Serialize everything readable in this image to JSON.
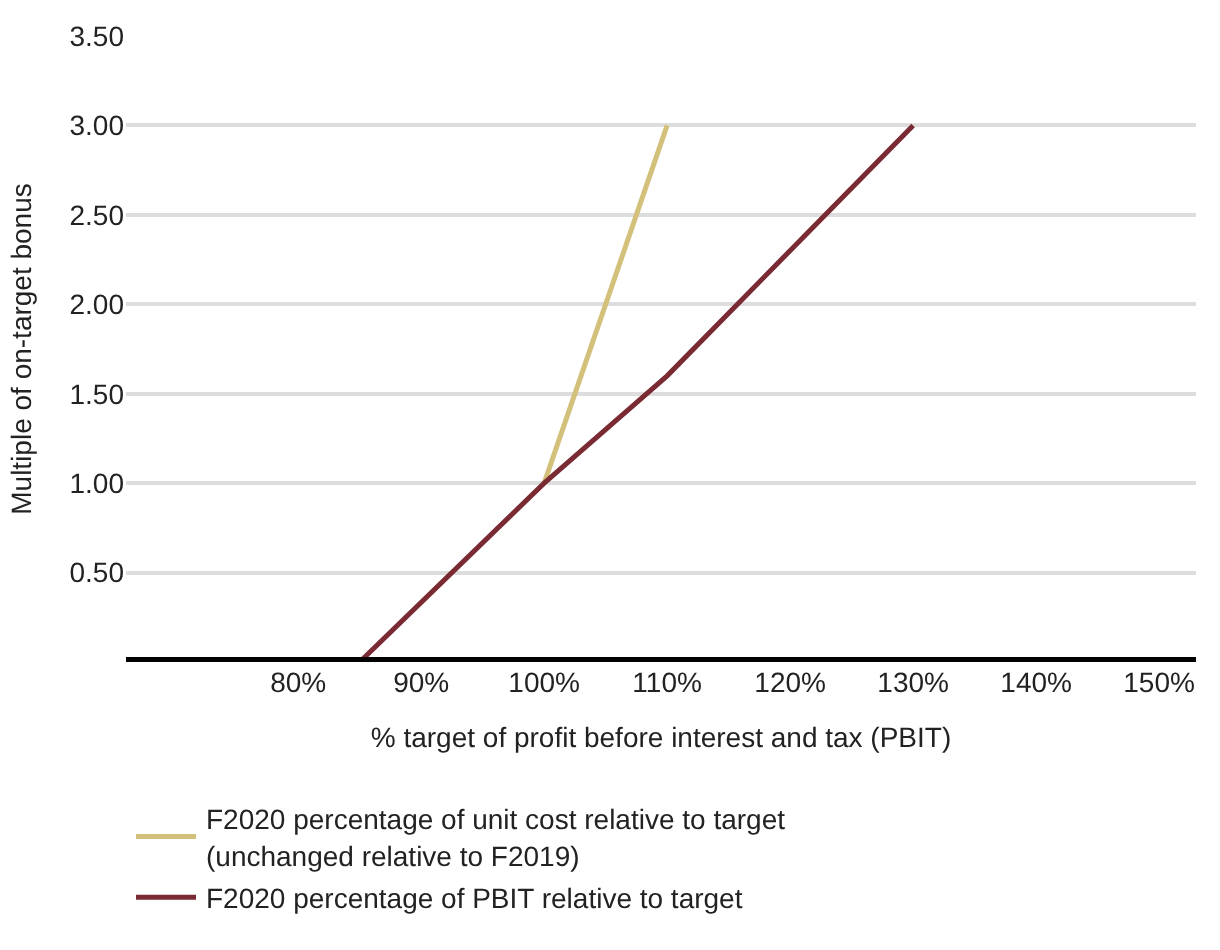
{
  "chart_data": {
    "type": "line",
    "xlabel": "% target of profit before interest and tax (PBIT)",
    "ylabel": "Multiple of on-target bonus",
    "series": [
      {
        "name": "F2020 percentage of unit cost relative to target\n(unchanged relative to F2019)",
        "color": "#d3c07a",
        "x": [
          100,
          110
        ],
        "values": [
          1.0,
          3.0
        ]
      },
      {
        "name": "F2020 percentage of PBIT relative to target",
        "color": "#7a2a33",
        "x": [
          85,
          100,
          110,
          130
        ],
        "values": [
          0,
          1.0,
          1.6,
          3.0
        ]
      }
    ],
    "xlim": [
      66,
      153
    ],
    "ylim": [
      0,
      3.5
    ],
    "xticks": [
      {
        "value": 80,
        "label": "80%"
      },
      {
        "value": 90,
        "label": "90%"
      },
      {
        "value": 100,
        "label": "100%"
      },
      {
        "value": 110,
        "label": "110%"
      },
      {
        "value": 120,
        "label": "120%"
      },
      {
        "value": 130,
        "label": "130%"
      },
      {
        "value": 140,
        "label": "140%"
      },
      {
        "value": 150,
        "label": "150%"
      }
    ],
    "yticks": [
      {
        "value": 0.5,
        "label": "0.50"
      },
      {
        "value": 1.0,
        "label": "1.00"
      },
      {
        "value": 1.5,
        "label": "1.50"
      },
      {
        "value": 2.0,
        "label": "2.00"
      },
      {
        "value": 2.5,
        "label": "2.50"
      },
      {
        "value": 3.0,
        "label": "3.00"
      },
      {
        "value": 3.5,
        "label": "3.50"
      }
    ],
    "grid": "y",
    "legend": "bottom",
    "marker": "none",
    "line_style": "solid"
  }
}
